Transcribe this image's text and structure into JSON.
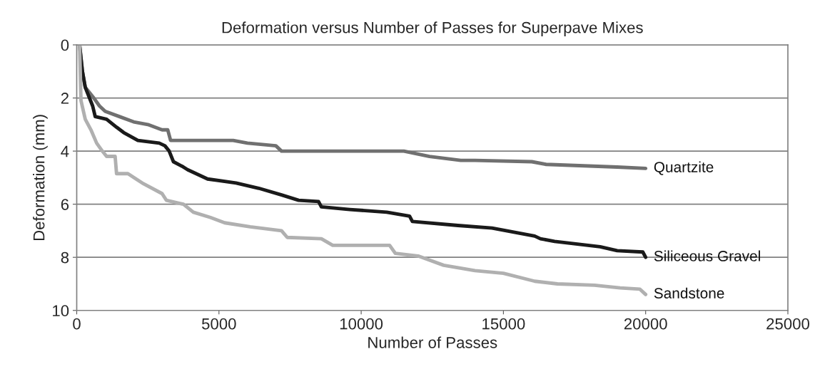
{
  "chart_data": {
    "type": "line",
    "title": "Deformation versus Number of Passes for Superpave Mixes",
    "xlabel": "Number of Passes",
    "ylabel": "Deformation (mm)",
    "xlim": [
      0,
      25000
    ],
    "xticks": [
      0,
      5000,
      10000,
      15000,
      20000,
      25000
    ],
    "ylim": [
      10,
      0
    ],
    "yticks": [
      0,
      2,
      4,
      6,
      8,
      10
    ],
    "grid": "y",
    "legend": false,
    "line_style": "solid",
    "marker": "none",
    "series": [
      {
        "name": "Quartzite",
        "color": "#707070",
        "x": [
          100,
          200,
          300,
          600,
          800,
          1000,
          1500,
          2000,
          2500,
          3000,
          3200,
          3300,
          5500,
          6000,
          7000,
          7200,
          11500,
          12400,
          13500,
          14000,
          16000,
          16500,
          19000,
          20000
        ],
        "values": [
          0,
          1.0,
          1.6,
          2.0,
          2.3,
          2.5,
          2.7,
          2.9,
          3.0,
          3.2,
          3.2,
          3.6,
          3.6,
          3.7,
          3.8,
          4.0,
          4.0,
          4.2,
          4.35,
          4.35,
          4.4,
          4.5,
          4.6,
          4.65
        ]
      },
      {
        "name": "Siliceous Gravel",
        "color": "#1a1a1a",
        "x": [
          100,
          200,
          300,
          560,
          650,
          1050,
          1400,
          1650,
          2150,
          2900,
          3100,
          3250,
          3400,
          3750,
          3900,
          4600,
          5600,
          6400,
          7200,
          7800,
          8500,
          8600,
          9600,
          10900,
          11700,
          11800,
          13400,
          14600,
          16100,
          16300,
          16800,
          18400,
          19000,
          19900,
          20000
        ],
        "values": [
          0,
          1.0,
          1.6,
          2.3,
          2.7,
          2.8,
          3.1,
          3.3,
          3.6,
          3.7,
          3.8,
          4.0,
          4.4,
          4.6,
          4.7,
          5.05,
          5.2,
          5.4,
          5.65,
          5.85,
          5.9,
          6.1,
          6.2,
          6.3,
          6.45,
          6.65,
          6.8,
          6.9,
          7.2,
          7.3,
          7.4,
          7.6,
          7.75,
          7.8,
          8.0
        ]
      },
      {
        "name": "Sandstone",
        "color": "#b0b0b0",
        "x": [
          100,
          150,
          300,
          500,
          700,
          900,
          1050,
          1350,
          1400,
          1800,
          2300,
          3000,
          3150,
          3750,
          4100,
          4700,
          5200,
          6100,
          7200,
          7400,
          8600,
          9000,
          11000,
          11200,
          12000,
          12900,
          14000,
          15000,
          16100,
          16900,
          18200,
          19100,
          19800,
          20000
        ],
        "values": [
          0,
          2.1,
          2.8,
          3.2,
          3.7,
          4.0,
          4.2,
          4.2,
          4.85,
          4.85,
          5.2,
          5.6,
          5.85,
          6.0,
          6.3,
          6.5,
          6.7,
          6.85,
          7.0,
          7.25,
          7.3,
          7.55,
          7.55,
          7.85,
          7.95,
          8.3,
          8.5,
          8.6,
          8.9,
          9.0,
          9.05,
          9.15,
          9.2,
          9.4
        ]
      }
    ]
  }
}
